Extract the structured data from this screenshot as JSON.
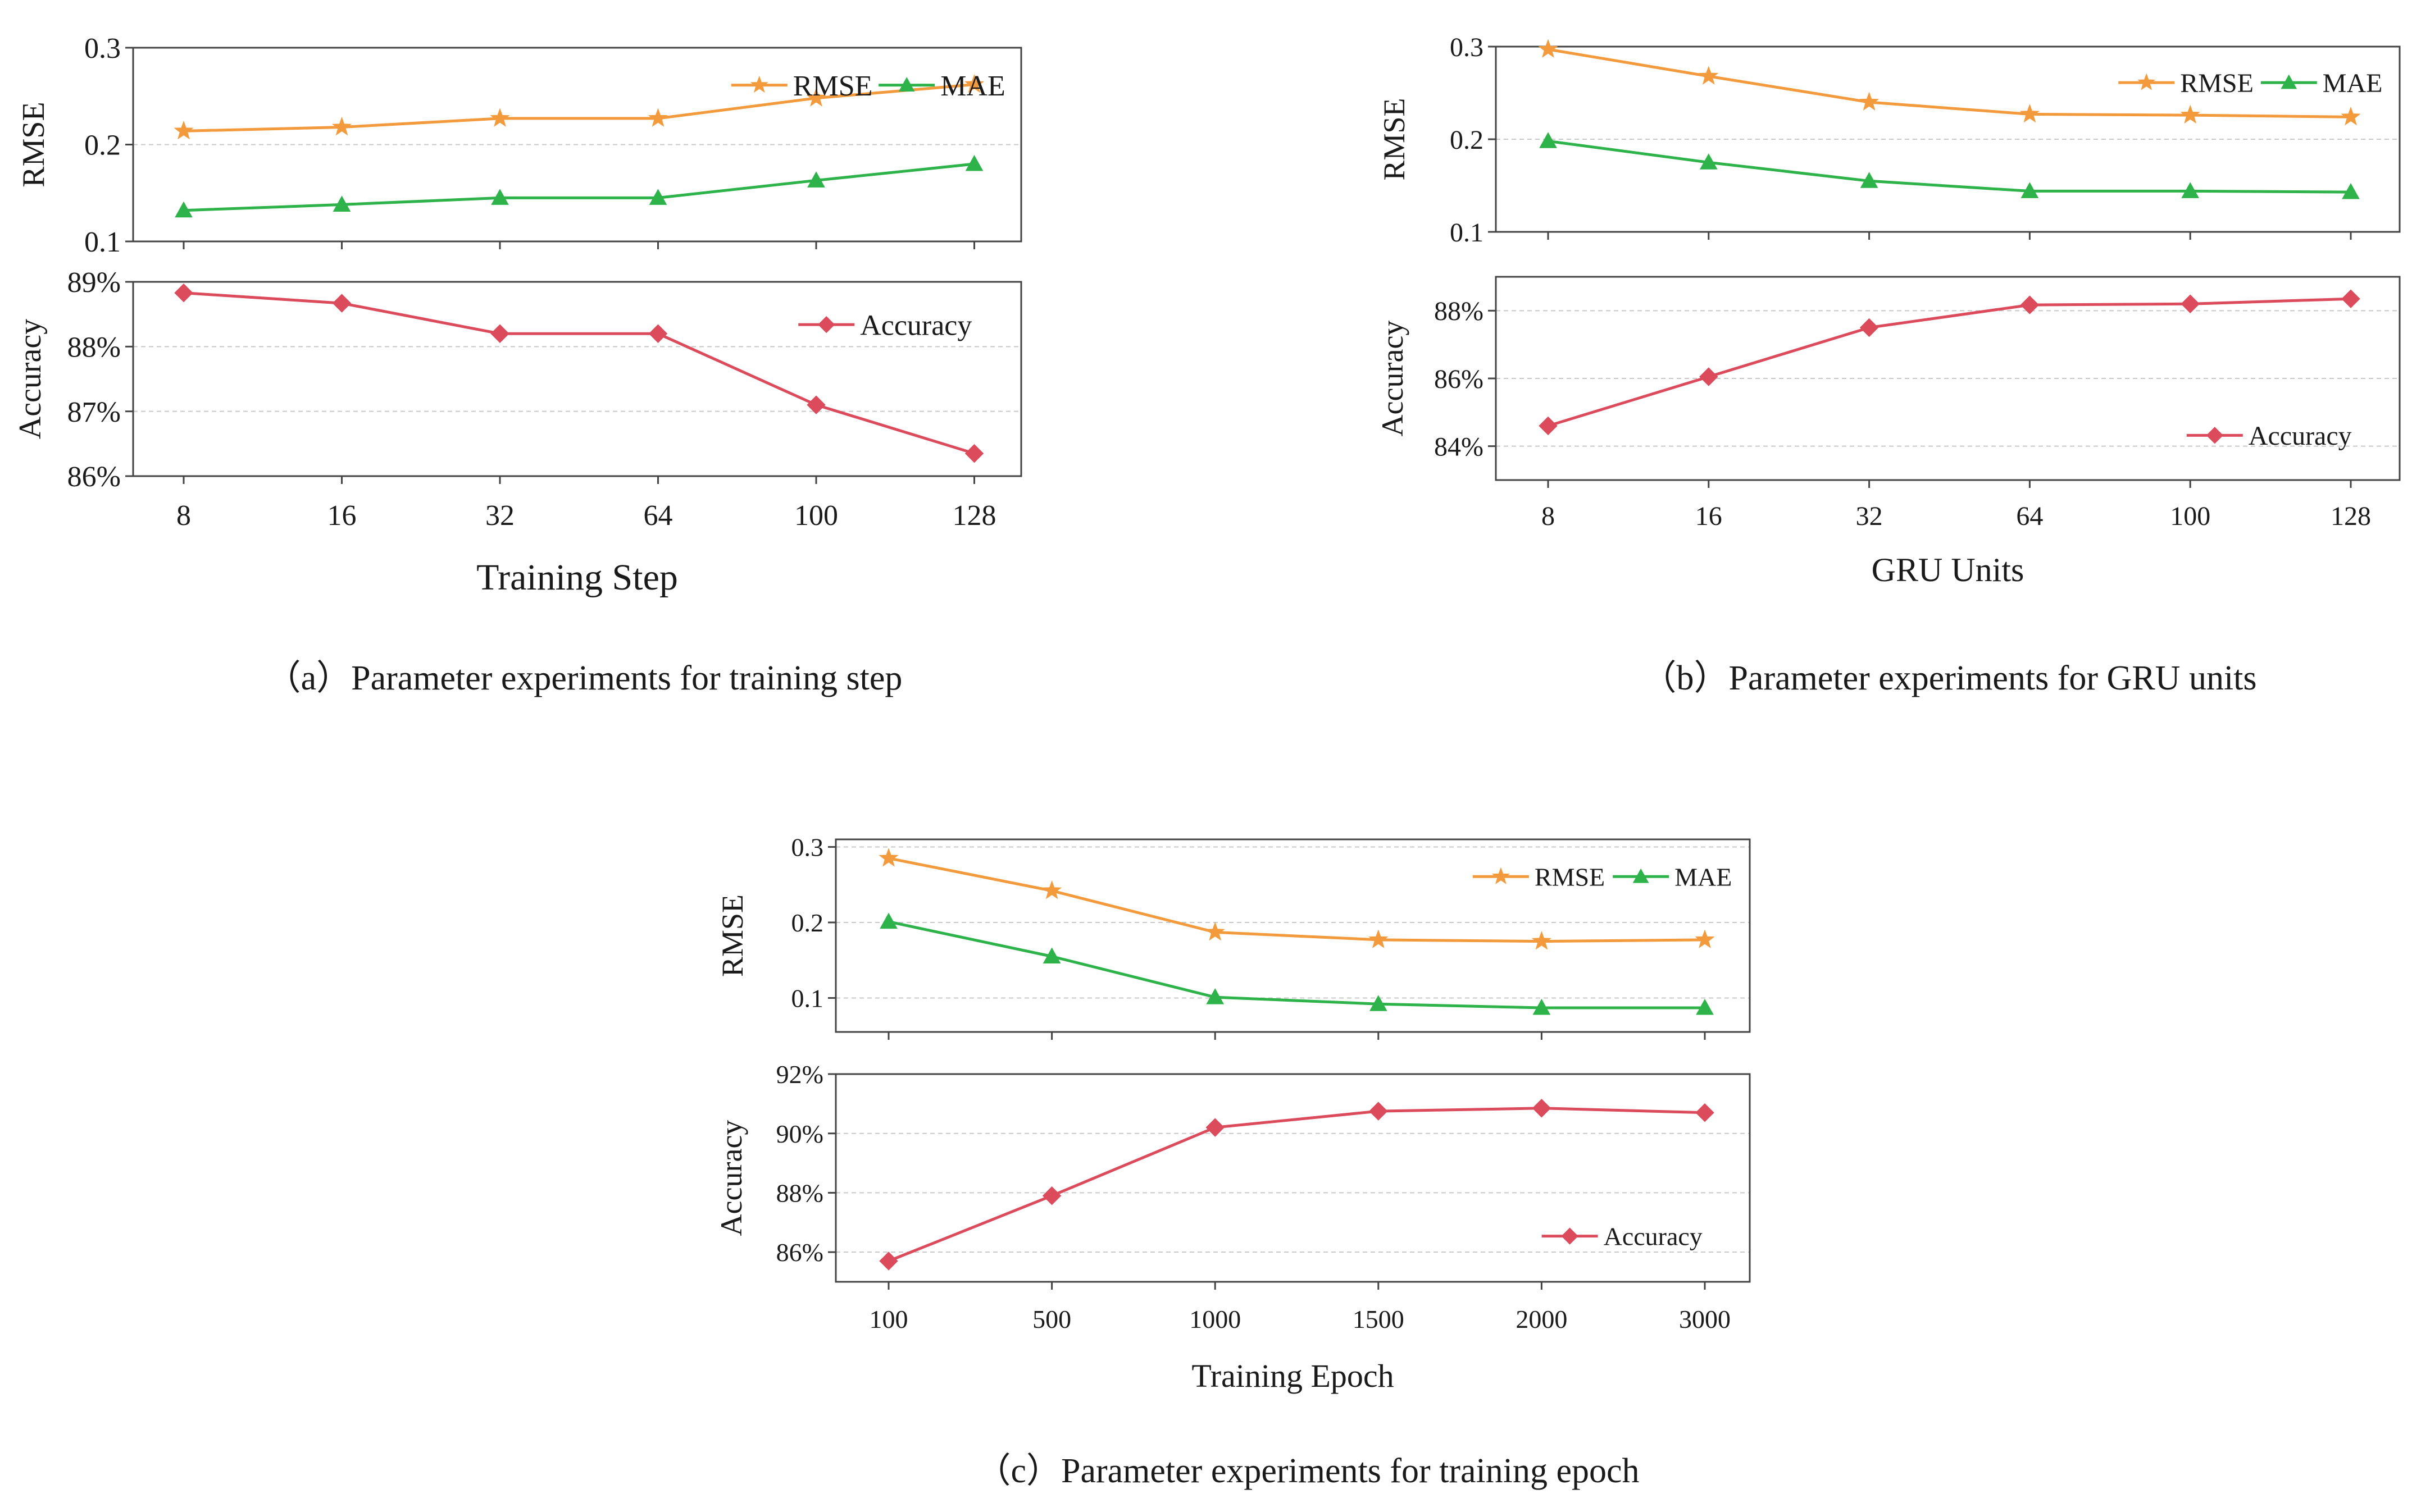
{
  "colors": {
    "rmse": "#F39A3C",
    "mae": "#2DB34A",
    "accuracy": "#DC4B5C",
    "axis": "#444444",
    "grid": "#c8c8c8"
  },
  "chart_data": [
    {
      "id": "a",
      "type": "line",
      "caption": "（a）Parameter experiments for training step",
      "xlabel": "Training Step",
      "categories": [
        "8",
        "16",
        "32",
        "64",
        "100",
        "128"
      ],
      "top": {
        "ylabel": "RMSE",
        "ylim": [
          0.1,
          0.3
        ],
        "yticks": [
          0.1,
          0.2,
          0.3
        ],
        "ytick_labels": [
          "0.1",
          "0.2",
          "0.3"
        ],
        "legend_position": "top-right",
        "series": [
          {
            "name": "RMSE",
            "marker": "star",
            "color_key": "rmse",
            "values": [
              0.214,
              0.218,
              0.227,
              0.227,
              0.248,
              0.262
            ]
          },
          {
            "name": "MAE",
            "marker": "triangle",
            "color_key": "mae",
            "values": [
              0.132,
              0.138,
              0.145,
              0.145,
              0.163,
              0.18
            ]
          }
        ]
      },
      "bottom": {
        "ylabel": "Accuracy",
        "ylim": [
          86,
          89
        ],
        "yticks": [
          86,
          87,
          88,
          89
        ],
        "ytick_labels": [
          "86%",
          "87%",
          "88%",
          "89%"
        ],
        "legend_position": "top-right",
        "series": [
          {
            "name": "Accuracy",
            "marker": "diamond",
            "color_key": "accuracy",
            "values": [
              88.83,
              88.67,
              88.2,
              88.2,
              87.1,
              86.35
            ]
          }
        ]
      }
    },
    {
      "id": "b",
      "type": "line",
      "caption": "（b）Parameter experiments for GRU units",
      "xlabel": "GRU Units",
      "categories": [
        "8",
        "16",
        "32",
        "64",
        "100",
        "128"
      ],
      "top": {
        "ylabel": "RMSE",
        "ylim": [
          0.1,
          0.3
        ],
        "yticks": [
          0.1,
          0.2,
          0.3
        ],
        "ytick_labels": [
          "0.1",
          "0.2",
          "0.3"
        ],
        "legend_position": "top-right",
        "series": [
          {
            "name": "RMSE",
            "marker": "star",
            "color_key": "rmse",
            "values": [
              0.297,
              0.268,
              0.24,
              0.227,
              0.226,
              0.224
            ]
          },
          {
            "name": "MAE",
            "marker": "triangle",
            "color_key": "mae",
            "values": [
              0.198,
              0.175,
              0.155,
              0.144,
              0.144,
              0.143
            ]
          }
        ]
      },
      "bottom": {
        "ylabel": "Accuracy",
        "ylim": [
          83,
          89
        ],
        "yticks": [
          84,
          86,
          88
        ],
        "ytick_labels": [
          "84%",
          "86%",
          "88%"
        ],
        "legend_position": "bottom-right",
        "series": [
          {
            "name": "Accuracy",
            "marker": "diamond",
            "color_key": "accuracy",
            "values": [
              84.6,
              86.05,
              87.5,
              88.17,
              88.2,
              88.35
            ]
          }
        ]
      }
    },
    {
      "id": "c",
      "type": "line",
      "caption": "（c）Parameter experiments for training epoch",
      "xlabel": "Training Epoch",
      "categories": [
        "100",
        "500",
        "1000",
        "1500",
        "2000",
        "3000"
      ],
      "top": {
        "ylabel": "RMSE",
        "ylim": [
          0.055,
          0.31
        ],
        "yticks": [
          0.1,
          0.2,
          0.3
        ],
        "ytick_labels": [
          "0.1",
          "0.2",
          "0.3"
        ],
        "legend_position": "top-right",
        "series": [
          {
            "name": "RMSE",
            "marker": "star",
            "color_key": "rmse",
            "values": [
              0.285,
              0.242,
              0.187,
              0.177,
              0.175,
              0.177
            ]
          },
          {
            "name": "MAE",
            "marker": "triangle",
            "color_key": "mae",
            "values": [
              0.201,
              0.155,
              0.101,
              0.092,
              0.087,
              0.087
            ]
          }
        ]
      },
      "bottom": {
        "ylabel": "Accuracy",
        "ylim": [
          85,
          92
        ],
        "yticks": [
          86,
          88,
          90,
          92
        ],
        "ytick_labels": [
          "86%",
          "88%",
          "90%",
          "92%"
        ],
        "legend_position": "bottom-right",
        "series": [
          {
            "name": "Accuracy",
            "marker": "diamond",
            "color_key": "accuracy",
            "values": [
              85.7,
              87.9,
              90.2,
              90.75,
              90.85,
              90.7
            ]
          }
        ]
      }
    }
  ]
}
